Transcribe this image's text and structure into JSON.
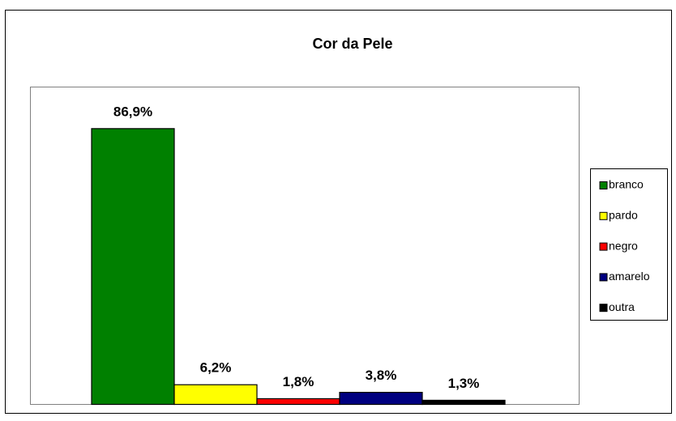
{
  "chart_data": {
    "type": "bar",
    "title": "Cor da Pele",
    "series": [
      {
        "name": "branco",
        "color": "#008000",
        "values": [
          86.9
        ],
        "value_labels": [
          "86,9%"
        ]
      },
      {
        "name": "pardo",
        "color": "#ffff00",
        "values": [
          6.2
        ],
        "value_labels": [
          "6,2%"
        ]
      },
      {
        "name": "negro",
        "color": "#ff0000",
        "values": [
          1.8
        ],
        "value_labels": [
          "1,8%"
        ]
      },
      {
        "name": "amarelo",
        "color": "#000080",
        "values": [
          3.8
        ],
        "value_labels": [
          "3,8%"
        ]
      },
      {
        "name": "outra",
        "color": "#000000",
        "values": [
          1.3
        ],
        "value_labels": [
          "1,3%"
        ]
      }
    ],
    "ylim": [
      0,
      100
    ],
    "legend": "right"
  }
}
